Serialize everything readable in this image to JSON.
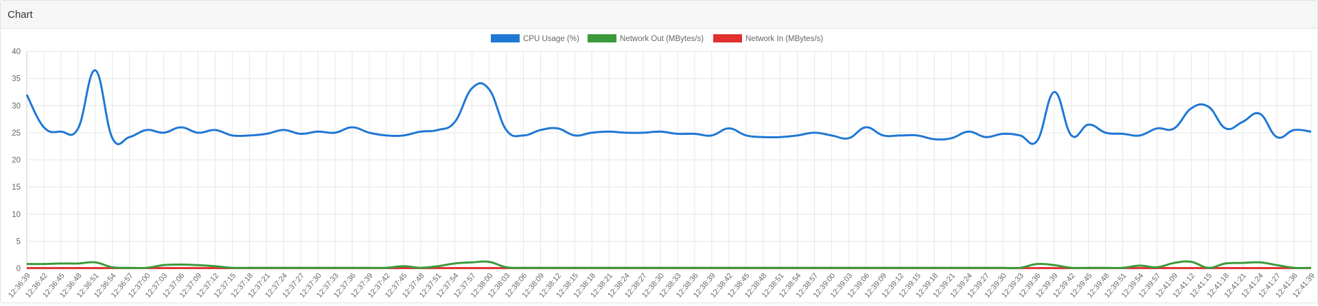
{
  "panel": {
    "title": "Chart"
  },
  "colors": {
    "cpu": "#1f77d4",
    "net_out": "#3a9a3a",
    "net_in": "#e03030",
    "grid": "#e6e6e6",
    "axis_text": "#666666"
  },
  "chart_data": {
    "type": "line",
    "title": "",
    "xlabel": "",
    "ylabel": "",
    "ylim": [
      0,
      40
    ],
    "yticks": [
      0,
      5,
      10,
      15,
      20,
      25,
      30,
      35,
      40
    ],
    "grid": true,
    "legend_position": "top-center",
    "x": [
      "12:36:39",
      "12:36:42",
      "12:36:45",
      "12:36:48",
      "12:36:51",
      "12:36:54",
      "12:36:57",
      "12:37:00",
      "12:37:03",
      "12:37:06",
      "12:37:09",
      "12:37:12",
      "12:37:15",
      "12:37:18",
      "12:37:21",
      "12:37:24",
      "12:37:27",
      "12:37:30",
      "12:37:33",
      "12:37:36",
      "12:37:39",
      "12:37:42",
      "12:37:45",
      "12:37:48",
      "12:37:51",
      "12:37:54",
      "12:37:57",
      "12:38:00",
      "12:38:03",
      "12:38:06",
      "12:38:09",
      "12:38:12",
      "12:38:15",
      "12:38:18",
      "12:38:21",
      "12:38:24",
      "12:38:27",
      "12:38:30",
      "12:38:33",
      "12:38:36",
      "12:38:39",
      "12:38:42",
      "12:38:45",
      "12:38:48",
      "12:38:51",
      "12:38:54",
      "12:38:57",
      "12:39:00",
      "12:39:03",
      "12:39:06",
      "12:39:09",
      "12:39:12",
      "12:39:15",
      "12:39:18",
      "12:39:21",
      "12:39:24",
      "12:39:27",
      "12:39:30",
      "12:39:33",
      "12:39:36",
      "12:39:39",
      "12:39:42",
      "12:39:45",
      "12:39:48",
      "12:39:51",
      "12:39:54",
      "12:39:57",
      "12:41:09",
      "12:41:12",
      "12:41:15",
      "12:41:18",
      "12:41:21",
      "12:41:24",
      "12:41:27",
      "12:41:36",
      "12:41:39"
    ],
    "series": [
      {
        "name": "CPU Usage (%)",
        "values": [
          32.0,
          26.0,
          25.2,
          25.8,
          36.5,
          24.0,
          24.2,
          25.5,
          25.0,
          26.0,
          25.0,
          25.5,
          24.5,
          24.5,
          24.8,
          25.5,
          24.8,
          25.2,
          25.0,
          26.0,
          25.0,
          24.5,
          24.5,
          25.2,
          25.5,
          27.0,
          33.2,
          33.0,
          25.5,
          24.5,
          25.5,
          25.8,
          24.5,
          25.0,
          25.2,
          25.0,
          25.0,
          25.2,
          24.8,
          24.8,
          24.5,
          25.8,
          24.5,
          24.2,
          24.2,
          24.5,
          25.0,
          24.5,
          24.0,
          26.0,
          24.5,
          24.5,
          24.5,
          23.8,
          24.0,
          25.2,
          24.2,
          24.8,
          24.5,
          23.5,
          32.5,
          24.5,
          26.5,
          25.0,
          24.8,
          24.5,
          25.8,
          25.8,
          29.5,
          29.8,
          25.8,
          27.0,
          28.5,
          24.2,
          25.5,
          25.2
        ]
      },
      {
        "name": "Network Out (MBytes/s)",
        "values": [
          0.8,
          0.8,
          0.9,
          0.9,
          1.1,
          0.2,
          0.1,
          0.1,
          0.6,
          0.7,
          0.6,
          0.4,
          0.1,
          0.1,
          0.1,
          0.1,
          0.1,
          0.1,
          0.1,
          0.1,
          0.1,
          0.1,
          0.4,
          0.1,
          0.4,
          0.9,
          1.1,
          1.2,
          0.2,
          0.1,
          0.1,
          0.1,
          0.1,
          0.1,
          0.1,
          0.1,
          0.1,
          0.1,
          0.1,
          0.1,
          0.1,
          0.1,
          0.1,
          0.1,
          0.1,
          0.1,
          0.1,
          0.1,
          0.1,
          0.1,
          0.1,
          0.1,
          0.1,
          0.1,
          0.1,
          0.1,
          0.1,
          0.1,
          0.1,
          0.8,
          0.6,
          0.1,
          0.1,
          0.1,
          0.1,
          0.5,
          0.2,
          1.0,
          1.2,
          0.1,
          0.9,
          1.0,
          1.1,
          0.6,
          0.1,
          0.1
        ]
      },
      {
        "name": "Network In (MBytes/s)",
        "values": [
          0.05,
          0.05,
          0.05,
          0.05,
          0.05,
          0.05,
          0.05,
          0.05,
          0.05,
          0.05,
          0.05,
          0.05,
          0.05,
          0.05,
          0.05,
          0.05,
          0.05,
          0.05,
          0.05,
          0.05,
          0.05,
          0.05,
          0.05,
          0.05,
          0.05,
          0.05,
          0.05,
          0.05,
          0.05,
          0.05,
          0.05,
          0.05,
          0.05,
          0.05,
          0.05,
          0.05,
          0.05,
          0.05,
          0.05,
          0.05,
          0.05,
          0.05,
          0.05,
          0.05,
          0.05,
          0.05,
          0.05,
          0.05,
          0.05,
          0.05,
          0.05,
          0.05,
          0.05,
          0.05,
          0.05,
          0.05,
          0.05,
          0.05,
          0.05,
          0.05,
          0.05,
          0.05,
          0.05,
          0.05,
          0.05,
          0.05,
          0.05,
          0.05,
          0.05,
          0.05,
          0.05,
          0.05,
          0.05,
          0.05,
          0.05,
          0.05
        ]
      }
    ]
  }
}
